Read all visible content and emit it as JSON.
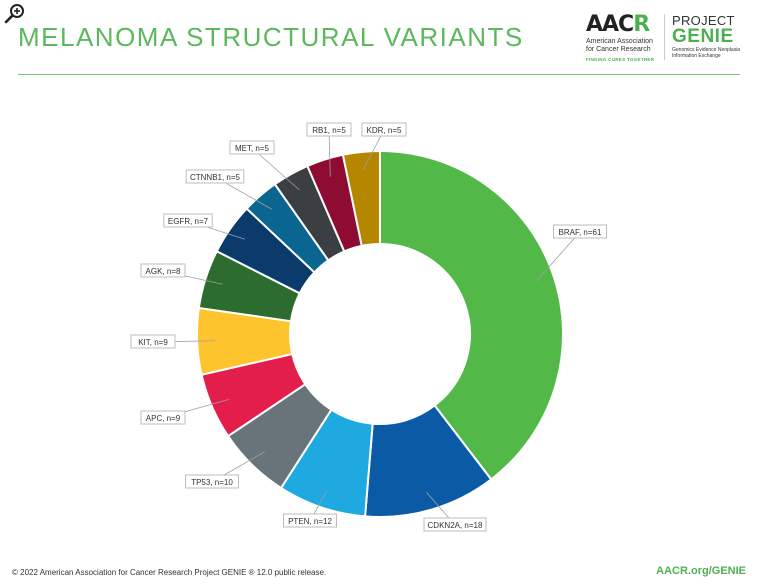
{
  "header": {
    "title": "MELANOMA STRUCTURAL VARIANTS",
    "aacr_prefix": "AAC",
    "aacr_suffix": "R",
    "aacr_org_line1": "American Association",
    "aacr_org_line2": "for Cancer Research",
    "aacr_tagline": "FINDING CURES TOGETHER",
    "genie_project": "PROJECT",
    "genie_word": "GENIE",
    "genie_sub_line1": "Genomics Evidence Neoplasia",
    "genie_sub_line2": "Information Exchange"
  },
  "footer": {
    "copyright": "© 2022 American Association for Cancer Research Project GENIE ® 12.0 public release.",
    "url": "AACR.org/GENIE"
  },
  "icons": {
    "zoom": "zoom-in-icon"
  },
  "chart_data": {
    "type": "pie",
    "title": "MELANOMA STRUCTURAL VARIANTS",
    "donut": true,
    "categories": [
      "BRAF",
      "CDKN2A",
      "PTEN",
      "TP53",
      "APC",
      "KIT",
      "AGK",
      "EGFR",
      "CTNNB1",
      "MET",
      "RB1",
      "KDR"
    ],
    "values": [
      61,
      18,
      12,
      10,
      9,
      9,
      8,
      7,
      5,
      5,
      5,
      5
    ],
    "labels": [
      "BRAF, n=61",
      "CDKN2A, n=18",
      "PTEN, n=12",
      "TP53, n=10",
      "APC, n=9",
      "KIT, n=9",
      "AGK, n=8",
      "EGFR, n=7",
      "CTNNB1, n=5",
      "MET, n=5",
      "RB1, n=5",
      "KDR, n=5"
    ],
    "colors": [
      "#52b948",
      "#0a5aa6",
      "#1ea9e1",
      "#69737a",
      "#e41e4b",
      "#fec42e",
      "#2c6c2e",
      "#0b3b6b",
      "#0a6590",
      "#3b3e42",
      "#8e0c32",
      "#b58700"
    ]
  }
}
